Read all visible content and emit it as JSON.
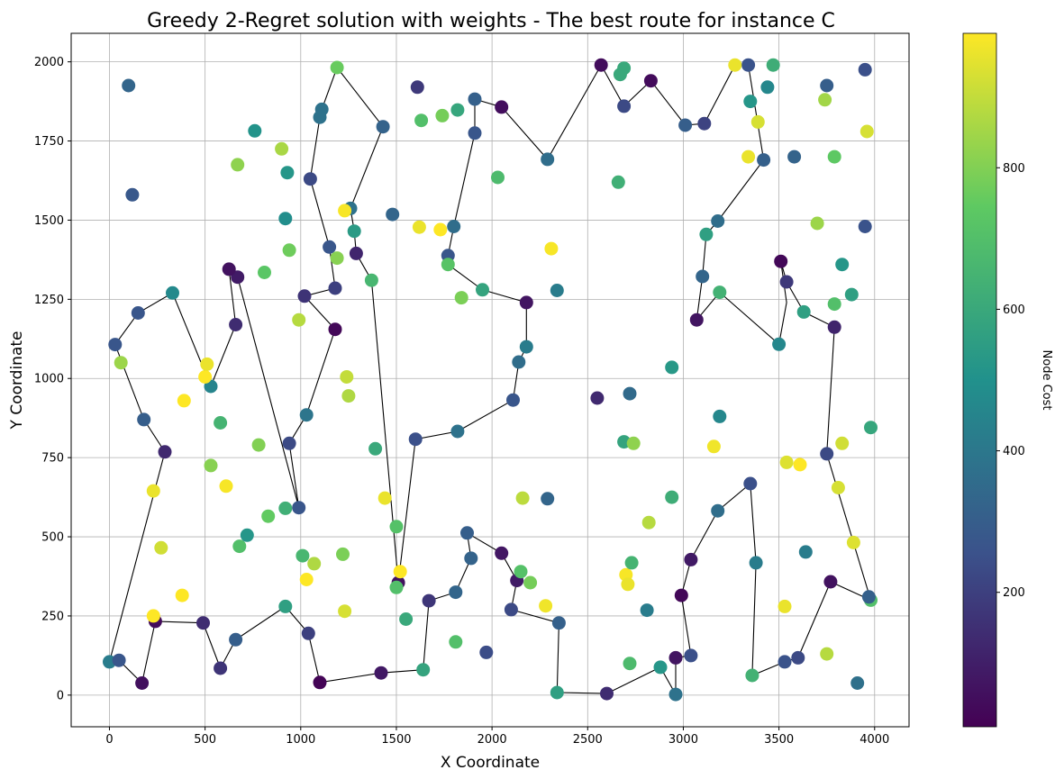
{
  "chart_data": {
    "type": "scatter",
    "title": "Greedy 2-Regret solution with weights - The best route for instance C",
    "xlabel": "X Coordinate",
    "ylabel": "Y Coordinate",
    "xlim": [
      -200,
      4180
    ],
    "ylim": [
      -100,
      2090
    ],
    "xticks": [
      0,
      500,
      1000,
      1500,
      2000,
      2500,
      3000,
      3500,
      4000
    ],
    "yticks": [
      0,
      250,
      500,
      750,
      1000,
      1250,
      1500,
      1750,
      2000
    ],
    "grid": true,
    "colorbar": {
      "label": "Node Cost",
      "colormap": "viridis",
      "range": [
        10,
        990
      ],
      "ticks": [
        200,
        400,
        600,
        800
      ]
    },
    "route_color": "#000000",
    "route": [
      [
        0,
        105
      ],
      [
        50,
        110
      ],
      [
        170,
        38
      ],
      [
        240,
        233
      ],
      [
        490,
        228
      ],
      [
        580,
        85
      ],
      [
        660,
        175
      ],
      [
        920,
        280
      ],
      [
        1040,
        195
      ],
      [
        1100,
        40
      ],
      [
        1420,
        70
      ],
      [
        1640,
        80
      ],
      [
        1670,
        298
      ],
      [
        1810,
        325
      ],
      [
        1890,
        432
      ],
      [
        1870,
        512
      ],
      [
        2050,
        448
      ],
      [
        2130,
        362
      ],
      [
        2100,
        270
      ],
      [
        2350,
        228
      ],
      [
        2340,
        8
      ],
      [
        2600,
        5
      ],
      [
        2880,
        88
      ],
      [
        2960,
        2
      ],
      [
        2960,
        118
      ],
      [
        3040,
        125
      ],
      [
        2990,
        315
      ],
      [
        3040,
        428
      ],
      [
        3180,
        582
      ],
      [
        3350,
        668
      ],
      [
        3380,
        418
      ],
      [
        3360,
        62
      ],
      [
        3530,
        105
      ],
      [
        3600,
        118
      ],
      [
        3770,
        358
      ],
      [
        3980,
        300
      ],
      [
        3750,
        762
      ],
      [
        3790,
        1162
      ],
      [
        3630,
        1210
      ],
      [
        3540,
        1305
      ],
      [
        3510,
        1370
      ],
      [
        3540,
        1240
      ],
      [
        3500,
        1108
      ],
      [
        3190,
        1272
      ],
      [
        3070,
        1185
      ],
      [
        3100,
        1322
      ],
      [
        3120,
        1455
      ],
      [
        3180,
        1497
      ],
      [
        3420,
        1690
      ],
      [
        3340,
        1990
      ],
      [
        3270,
        1990
      ],
      [
        3110,
        1805
      ],
      [
        3010,
        1800
      ],
      [
        2830,
        1940
      ],
      [
        2690,
        1860
      ],
      [
        2570,
        1990
      ],
      [
        2290,
        1692
      ],
      [
        2050,
        1857
      ],
      [
        1910,
        1882
      ],
      [
        1910,
        1775
      ],
      [
        1800,
        1480
      ],
      [
        1770,
        1388
      ],
      [
        1770,
        1360
      ],
      [
        1950,
        1280
      ],
      [
        2180,
        1240
      ],
      [
        2180,
        1100
      ],
      [
        2140,
        1052
      ],
      [
        2110,
        932
      ],
      [
        1820,
        833
      ],
      [
        1600,
        808
      ],
      [
        1510,
        355
      ],
      [
        1370,
        1310
      ],
      [
        1290,
        1395
      ],
      [
        1280,
        1465
      ],
      [
        1260,
        1537
      ],
      [
        1430,
        1795
      ],
      [
        1190,
        1982
      ],
      [
        1110,
        1850
      ],
      [
        1100,
        1825
      ],
      [
        1050,
        1630
      ],
      [
        1150,
        1415
      ],
      [
        1180,
        1285
      ],
      [
        1020,
        1260
      ],
      [
        1180,
        1155
      ],
      [
        1030,
        885
      ],
      [
        940,
        795
      ],
      [
        990,
        592
      ],
      [
        670,
        1320
      ],
      [
        625,
        1345
      ],
      [
        660,
        1170
      ],
      [
        530,
        975
      ],
      [
        330,
        1270
      ],
      [
        150,
        1207
      ],
      [
        30,
        1107
      ],
      [
        180,
        870
      ],
      [
        290,
        768
      ],
      [
        0,
        105
      ]
    ],
    "points": [
      [
        0,
        105,
        420
      ],
      [
        50,
        110,
        270
      ],
      [
        170,
        38,
        55
      ],
      [
        240,
        233,
        40
      ],
      [
        490,
        228,
        140
      ],
      [
        580,
        85,
        165
      ],
      [
        660,
        175,
        300
      ],
      [
        920,
        280,
        560
      ],
      [
        1040,
        195,
        200
      ],
      [
        1100,
        40,
        20
      ],
      [
        1420,
        70,
        80
      ],
      [
        1640,
        80,
        580
      ],
      [
        1670,
        298,
        170
      ],
      [
        1810,
        325,
        330
      ],
      [
        1890,
        432,
        320
      ],
      [
        1870,
        512,
        300
      ],
      [
        2050,
        448,
        75
      ],
      [
        2130,
        362,
        90
      ],
      [
        2100,
        270,
        230
      ],
      [
        2350,
        228,
        310
      ],
      [
        2340,
        8,
        560
      ],
      [
        2600,
        5,
        140
      ],
      [
        2880,
        88,
        520
      ],
      [
        2960,
        2,
        380
      ],
      [
        2960,
        118,
        70
      ],
      [
        3040,
        125,
        250
      ],
      [
        2990,
        315,
        30
      ],
      [
        3040,
        428,
        85
      ],
      [
        3180,
        582,
        360
      ],
      [
        3350,
        668,
        250
      ],
      [
        3380,
        418,
        420
      ],
      [
        3360,
        62,
        640
      ],
      [
        3530,
        105,
        260
      ],
      [
        3600,
        118,
        230
      ],
      [
        3770,
        358,
        60
      ],
      [
        3980,
        300,
        700
      ],
      [
        3970,
        310,
        310
      ],
      [
        3750,
        762,
        230
      ],
      [
        3790,
        1162,
        115
      ],
      [
        3630,
        1210,
        560
      ],
      [
        3540,
        1305,
        180
      ],
      [
        3510,
        1370,
        30
      ],
      [
        3500,
        1108,
        460
      ],
      [
        3190,
        1272,
        640
      ],
      [
        3070,
        1185,
        70
      ],
      [
        3100,
        1322,
        330
      ],
      [
        3120,
        1455,
        560
      ],
      [
        3180,
        1497,
        360
      ],
      [
        3420,
        1690,
        310
      ],
      [
        3340,
        1990,
        260
      ],
      [
        3270,
        1990,
        960
      ],
      [
        3110,
        1805,
        210
      ],
      [
        3010,
        1800,
        300
      ],
      [
        2830,
        1940,
        40
      ],
      [
        2690,
        1860,
        230
      ],
      [
        2570,
        1990,
        45
      ],
      [
        2290,
        1692,
        360
      ],
      [
        2050,
        1857,
        50
      ],
      [
        1910,
        1882,
        310
      ],
      [
        1910,
        1775,
        270
      ],
      [
        1800,
        1480,
        360
      ],
      [
        1770,
        1388,
        270
      ],
      [
        1770,
        1360,
        720
      ],
      [
        1950,
        1280,
        580
      ],
      [
        2180,
        1240,
        70
      ],
      [
        2180,
        1100,
        420
      ],
      [
        2140,
        1052,
        360
      ],
      [
        2110,
        932,
        270
      ],
      [
        1820,
        833,
        380
      ],
      [
        1600,
        808,
        250
      ],
      [
        1510,
        355,
        60
      ],
      [
        1370,
        1310,
        660
      ],
      [
        1290,
        1395,
        120
      ],
      [
        1280,
        1465,
        540
      ],
      [
        1260,
        1537,
        380
      ],
      [
        1430,
        1795,
        320
      ],
      [
        1190,
        1982,
        760
      ],
      [
        1110,
        1850,
        380
      ],
      [
        1100,
        1825,
        380
      ],
      [
        1050,
        1630,
        230
      ],
      [
        1150,
        1415,
        270
      ],
      [
        1180,
        1285,
        200
      ],
      [
        1020,
        1260,
        160
      ],
      [
        1180,
        1155,
        30
      ],
      [
        1030,
        885,
        390
      ],
      [
        940,
        795,
        230
      ],
      [
        990,
        592,
        270
      ],
      [
        670,
        1320,
        90
      ],
      [
        625,
        1345,
        60
      ],
      [
        660,
        1170,
        140
      ],
      [
        530,
        975,
        450
      ],
      [
        330,
        1270,
        470
      ],
      [
        150,
        1207,
        270
      ],
      [
        30,
        1107,
        270
      ],
      [
        180,
        870,
        300
      ],
      [
        290,
        768,
        130
      ],
      [
        100,
        1925,
        330
      ],
      [
        120,
        1580,
        280
      ],
      [
        1610,
        1920,
        180
      ],
      [
        2690,
        1980,
        600
      ],
      [
        2670,
        1960,
        600
      ],
      [
        2660,
        1620,
        630
      ],
      [
        3470,
        1990,
        620
      ],
      [
        3440,
        1920,
        460
      ],
      [
        3350,
        1875,
        520
      ],
      [
        3750,
        1925,
        300
      ],
      [
        3950,
        1975,
        250
      ],
      [
        3580,
        1700,
        320
      ],
      [
        3950,
        1480,
        260
      ],
      [
        3880,
        1265,
        560
      ],
      [
        3830,
        1360,
        520
      ],
      [
        3980,
        845,
        590
      ],
      [
        3640,
        452,
        420
      ],
      [
        3910,
        38,
        370
      ],
      [
        3190,
        880,
        460
      ],
      [
        2940,
        1035,
        530
      ],
      [
        2720,
        952,
        350
      ],
      [
        2550,
        938,
        130
      ],
      [
        2340,
        1278,
        420
      ],
      [
        2290,
        620,
        330
      ],
      [
        2810,
        268,
        420
      ],
      [
        1970,
        135,
        240
      ],
      [
        1480,
        1518,
        330
      ],
      [
        760,
        1782,
        510
      ],
      [
        930,
        1650,
        520
      ],
      [
        920,
        1505,
        490
      ],
      [
        60,
        1050,
        840
      ],
      [
        1630,
        1815,
        700
      ],
      [
        1820,
        1848,
        590
      ],
      [
        1740,
        1830,
        780
      ],
      [
        2030,
        1635,
        680
      ],
      [
        1840,
        1255,
        790
      ],
      [
        940,
        1405,
        770
      ],
      [
        810,
        1335,
        730
      ],
      [
        1190,
        1380,
        810
      ],
      [
        390,
        930,
        990
      ],
      [
        500,
        1005,
        990
      ],
      [
        510,
        1045,
        960
      ],
      [
        580,
        860,
        650
      ],
      [
        530,
        725,
        810
      ],
      [
        610,
        660,
        980
      ],
      [
        780,
        790,
        800
      ],
      [
        230,
        645,
        960
      ],
      [
        270,
        465,
        920
      ],
      [
        380,
        315,
        990
      ],
      [
        230,
        250,
        990
      ],
      [
        680,
        470,
        700
      ],
      [
        720,
        505,
        520
      ],
      [
        830,
        565,
        750
      ],
      [
        920,
        590,
        630
      ],
      [
        1010,
        440,
        660
      ],
      [
        1070,
        415,
        870
      ],
      [
        1030,
        365,
        990
      ],
      [
        1220,
        445,
        790
      ],
      [
        1230,
        265,
        930
      ],
      [
        1240,
        1005,
        900
      ],
      [
        1250,
        945,
        870
      ],
      [
        1440,
        622,
        960
      ],
      [
        1390,
        778,
        600
      ],
      [
        1500,
        532,
        710
      ],
      [
        1500,
        340,
        700
      ],
      [
        1520,
        390,
        990
      ],
      [
        1550,
        240,
        600
      ],
      [
        1810,
        168,
        700
      ],
      [
        2150,
        390,
        710
      ],
      [
        2200,
        355,
        780
      ],
      [
        2280,
        282,
        970
      ],
      [
        2160,
        622,
        890
      ],
      [
        1620,
        1478,
        960
      ],
      [
        1730,
        1470,
        990
      ],
      [
        2310,
        1410,
        980
      ],
      [
        2700,
        380,
        980
      ],
      [
        2710,
        350,
        960
      ],
      [
        2730,
        418,
        650
      ],
      [
        2720,
        100,
        680
      ],
      [
        2690,
        800,
        580
      ],
      [
        2740,
        795,
        820
      ],
      [
        2820,
        545,
        880
      ],
      [
        2940,
        625,
        620
      ],
      [
        3160,
        785,
        970
      ],
      [
        3530,
        280,
        960
      ],
      [
        3540,
        735,
        940
      ],
      [
        3610,
        728,
        990
      ],
      [
        3750,
        130,
        880
      ],
      [
        3810,
        655,
        930
      ],
      [
        3830,
        795,
        920
      ],
      [
        3890,
        482,
        940
      ],
      [
        3700,
        1490,
        840
      ],
      [
        3790,
        1235,
        700
      ],
      [
        3790,
        1700,
        740
      ],
      [
        3740,
        1880,
        850
      ],
      [
        3960,
        1780,
        930
      ],
      [
        3340,
        1700,
        960
      ],
      [
        3390,
        1810,
        930
      ],
      [
        1230,
        1530,
        980
      ],
      [
        900,
        1725,
        860
      ],
      [
        670,
        1675,
        820
      ],
      [
        990,
        1185,
        880
      ]
    ]
  }
}
